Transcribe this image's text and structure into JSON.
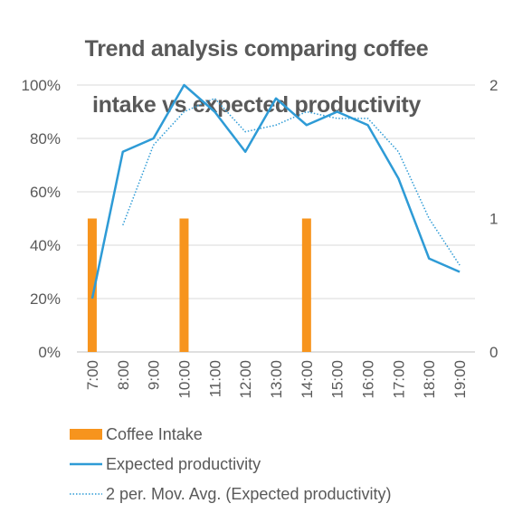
{
  "chart_data": {
    "type": "bar+line",
    "title": "Trend analysis comparing coffee intake vs expected productivity",
    "title_lines": [
      "Trend analysis comparing coffee",
      "intake vs expected productivity"
    ],
    "categories": [
      "7:00",
      "8:00",
      "9:00",
      "10:00",
      "11:00",
      "12:00",
      "13:00",
      "14:00",
      "15:00",
      "16:00",
      "17:00",
      "18:00",
      "19:00"
    ],
    "primary_axis": {
      "min": 0,
      "max": 1,
      "ticks": [
        0,
        0.2,
        0.4,
        0.6,
        0.8,
        1.0
      ],
      "tick_labels": [
        "0%",
        "20%",
        "40%",
        "60%",
        "80%",
        "100%"
      ]
    },
    "secondary_axis": {
      "min": 0,
      "max": 2,
      "ticks": [
        0,
        1,
        2
      ],
      "tick_labels": [
        "0",
        "1",
        "2"
      ]
    },
    "series": [
      {
        "name": "Coffee Intake",
        "type": "bar",
        "axis": "secondary",
        "color": "#F7941D",
        "values": [
          1,
          0,
          0,
          1,
          0,
          0,
          0,
          1,
          0,
          0,
          0,
          0,
          0
        ]
      },
      {
        "name": "Expected productivity",
        "type": "line",
        "axis": "primary",
        "color": "#2E9BD6",
        "values": [
          0.2,
          0.75,
          0.8,
          1.0,
          0.9,
          0.75,
          0.95,
          0.85,
          0.9,
          0.85,
          0.65,
          0.35,
          0.3
        ]
      },
      {
        "name": "2 per. Mov. Avg. (Expected productivity)",
        "type": "line",
        "style": "dotted",
        "axis": "primary",
        "color": "#2E9BD6",
        "values": [
          null,
          0.475,
          0.775,
          0.9,
          0.95,
          0.825,
          0.85,
          0.9,
          0.875,
          0.875,
          0.75,
          0.5,
          0.325
        ]
      }
    ],
    "grid": true,
    "legend_position": "bottom"
  }
}
